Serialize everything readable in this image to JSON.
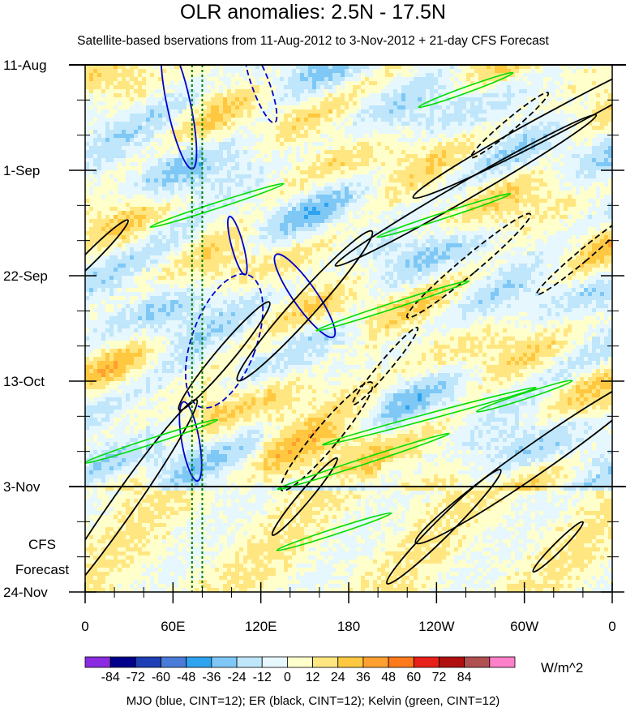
{
  "header": {
    "title": "OLR anomalies: 2.5N - 17.5N",
    "subtitle": "Satellite-based bservations from 11-Aug-2012 to 3-Nov-2012 + 21-day CFS Forecast",
    "footer": "MJO (blue, CINT=12); ER (black, CINT=12); Kelvin (green, CINT=12)",
    "units": "W/m^2"
  },
  "chart_data": {
    "type": "heatmap",
    "title": "OLR anomalies: 2.5N - 17.5N",
    "x_tick_labels": [
      "0",
      "60E",
      "120E",
      "180",
      "120W",
      "60W",
      "0"
    ],
    "x_ticks_deg": [
      0,
      60,
      120,
      180,
      240,
      300,
      360
    ],
    "y_tick_labels": [
      "11-Aug",
      "1-Sep",
      "22-Sep",
      "13-Oct",
      "3-Nov",
      "24-Nov"
    ],
    "y_ticks_day": [
      0,
      21,
      42,
      63,
      84,
      105
    ],
    "forecast_label_line1": "CFS",
    "forecast_label_line2": "Forecast",
    "observation_end": "3-Nov",
    "grid": false,
    "colorbar": {
      "levels": [
        "-84",
        "-72",
        "-60",
        "-48",
        "-36",
        "-24",
        "-12",
        "0",
        "12",
        "24",
        "36",
        "48",
        "60",
        "72",
        "84"
      ],
      "colors": [
        "#8a2be2",
        "#00008b",
        "#1e3fb4",
        "#4b7bd8",
        "#2ea3f0",
        "#7fc8f5",
        "#bfe6fb",
        "#e6f7fd",
        "#ffffcc",
        "#ffe680",
        "#ffc840",
        "#ffa030",
        "#ff7a1a",
        "#e8201a",
        "#b01010",
        "#b05050",
        "#ff7fc8"
      ],
      "unit": "W/m^2"
    },
    "series": [
      {
        "name": "MJO",
        "color": "#0000cc",
        "cint": 12
      },
      {
        "name": "ER",
        "color": "#000000",
        "cint": 12
      },
      {
        "name": "Kelvin",
        "color": "#00dd00",
        "cint": 12
      }
    ]
  }
}
